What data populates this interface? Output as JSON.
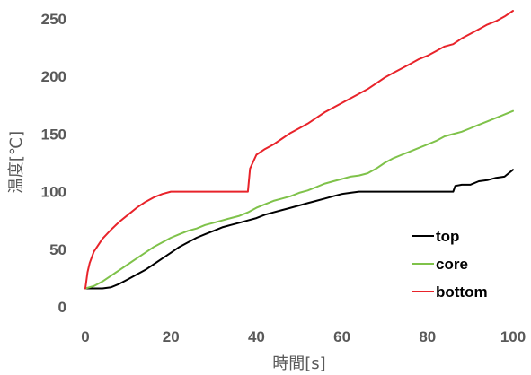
{
  "chart_data": {
    "type": "line",
    "xlabel": "時間[s]",
    "ylabel": "温度[℃]",
    "xlim": [
      0,
      100
    ],
    "ylim": [
      0,
      250
    ],
    "xticks": [
      0,
      20,
      40,
      60,
      80,
      100
    ],
    "yticks": [
      0,
      50,
      100,
      150,
      200,
      250
    ],
    "grid": "none",
    "legend_position": "lower-right",
    "series": [
      {
        "name": "top",
        "color": "#000000",
        "x": [
          0,
          2,
          4,
          6,
          8,
          10,
          12,
          14,
          16,
          18,
          20,
          22,
          24,
          26,
          28,
          30,
          32,
          34,
          36,
          38,
          40,
          42,
          44,
          46,
          48,
          50,
          52,
          54,
          56,
          58,
          60,
          62,
          64,
          66,
          68,
          70,
          72,
          74,
          76,
          78,
          80,
          82,
          84,
          86,
          86.5,
          88,
          90,
          92,
          94,
          96,
          98,
          100
        ],
        "y": [
          16,
          16,
          16,
          17,
          20,
          24,
          28,
          32,
          37,
          42,
          47,
          52,
          56,
          60,
          63,
          66,
          69,
          71,
          73,
          75,
          77,
          80,
          82,
          84,
          86,
          88,
          90,
          92,
          94,
          96,
          98,
          99,
          100,
          100,
          100,
          100,
          100,
          100,
          100,
          100,
          100,
          100,
          100,
          100,
          105,
          106,
          106,
          109,
          110,
          112,
          113,
          119
        ]
      },
      {
        "name": "core",
        "color": "#7fc24a",
        "x": [
          0,
          2,
          4,
          6,
          8,
          10,
          12,
          14,
          16,
          18,
          20,
          22,
          24,
          26,
          28,
          30,
          32,
          34,
          36,
          38,
          40,
          42,
          44,
          46,
          48,
          50,
          52,
          54,
          56,
          58,
          60,
          62,
          64,
          66,
          68,
          70,
          72,
          74,
          76,
          78,
          80,
          82,
          84,
          86,
          88,
          90,
          92,
          94,
          96,
          98,
          100
        ],
        "y": [
          16,
          18,
          22,
          27,
          32,
          37,
          42,
          47,
          52,
          56,
          60,
          63,
          66,
          68,
          71,
          73,
          75,
          77,
          79,
          82,
          86,
          89,
          92,
          94,
          96,
          99,
          101,
          104,
          107,
          109,
          111,
          113,
          114,
          116,
          120,
          125,
          129,
          132,
          135,
          138,
          141,
          144,
          148,
          150,
          152,
          155,
          158,
          161,
          164,
          167,
          170
        ]
      },
      {
        "name": "bottom",
        "color": "#e8232a",
        "x": [
          0,
          0.5,
          1,
          2,
          4,
          6,
          8,
          10,
          12,
          14,
          16,
          18,
          20,
          22,
          24,
          26,
          28,
          30,
          32,
          34,
          36,
          38,
          38.5,
          40,
          42,
          44,
          46,
          48,
          50,
          52,
          54,
          56,
          58,
          60,
          62,
          64,
          66,
          68,
          70,
          72,
          74,
          76,
          78,
          80,
          82,
          84,
          86,
          88,
          90,
          92,
          94,
          96,
          98,
          100
        ],
        "y": [
          16,
          30,
          38,
          48,
          59,
          67,
          74,
          80,
          86,
          91,
          95,
          98,
          100,
          100,
          100,
          100,
          100,
          100,
          100,
          100,
          100,
          100,
          120,
          132,
          137,
          141,
          146,
          151,
          155,
          159,
          164,
          169,
          173,
          177,
          181,
          185,
          189,
          194,
          199,
          203,
          207,
          211,
          215,
          218,
          222,
          226,
          228,
          233,
          237,
          241,
          245,
          248,
          252,
          257
        ]
      }
    ]
  }
}
